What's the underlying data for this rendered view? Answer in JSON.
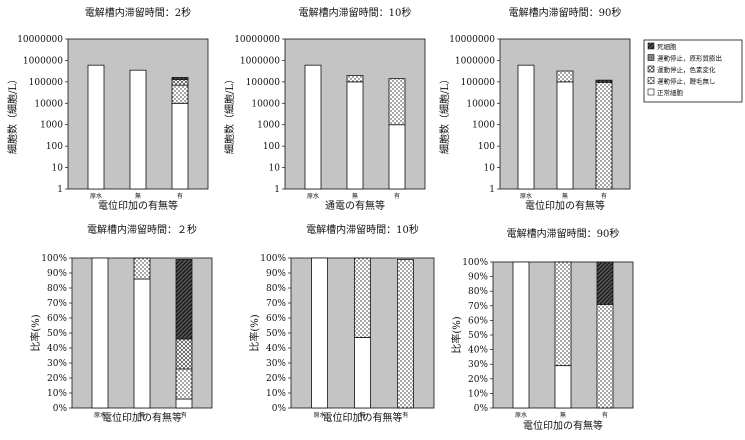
{
  "chart_data": [
    {
      "type": "bar",
      "stacked": true,
      "yscale": "log",
      "title": "電解槽内滞留時間：2秒",
      "ylabel": "細胞数（細胞/L）",
      "xlabel": "電位印加の有無等",
      "categories": [
        "原水",
        "無",
        "有"
      ],
      "ylim": [
        1,
        10000000
      ],
      "yticks": [
        "1",
        "10",
        "100",
        "1000",
        "10000",
        "100000",
        "1000000",
        "10000000"
      ],
      "series": [
        {
          "name": "正常細胞",
          "values": [
            600000,
            350000,
            10000
          ]
        },
        {
          "name": "運動停止，鞭毛無し",
          "values": [
            0,
            0,
            60000
          ]
        },
        {
          "name": "運動停止，色素変化",
          "values": [
            0,
            0,
            60000
          ]
        },
        {
          "name": "運動停止，原形質膨出",
          "values": [
            0,
            0,
            0
          ]
        },
        {
          "name": "死細胞",
          "values": [
            0,
            0,
            30000
          ]
        }
      ]
    },
    {
      "type": "bar",
      "stacked": true,
      "yscale": "log",
      "title": "電解槽内滞留時間：10秒",
      "ylabel": "細胞数（細胞/L）",
      "xlabel": "通電の有無等",
      "categories": [
        "原水",
        "無",
        "有"
      ],
      "ylim": [
        1,
        10000000
      ],
      "yticks": [
        "1",
        "10",
        "100",
        "1000",
        "10000",
        "100000",
        "1000000",
        "10000000"
      ],
      "series": [
        {
          "name": "正常細胞",
          "values": [
            600000,
            100000,
            1000
          ]
        },
        {
          "name": "運動停止，鞭毛無し",
          "values": [
            0,
            100000,
            140000
          ]
        },
        {
          "name": "運動停止，色素変化",
          "values": [
            0,
            0,
            0
          ]
        },
        {
          "name": "運動停止，原形質膨出",
          "values": [
            0,
            0,
            0
          ]
        },
        {
          "name": "死細胞",
          "values": [
            0,
            0,
            0
          ]
        }
      ]
    },
    {
      "type": "bar",
      "stacked": true,
      "yscale": "log",
      "title": "電解槽内滞留時間：90秒",
      "ylabel": "細胞数（細胞/L）",
      "xlabel": "電位印加の有無等",
      "categories": [
        "原水",
        "無",
        "有"
      ],
      "ylim": [
        1,
        10000000
      ],
      "yticks": [
        "1",
        "10",
        "100",
        "1000",
        "10000",
        "100000",
        "1000000",
        "10000000"
      ],
      "series": [
        {
          "name": "正常細胞",
          "values": [
            600000,
            100000,
            0
          ]
        },
        {
          "name": "運動停止，鞭毛無し",
          "values": [
            0,
            220000,
            95000
          ]
        },
        {
          "name": "運動停止，色素変化",
          "values": [
            0,
            0,
            0
          ]
        },
        {
          "name": "運動停止，原形質膨出",
          "values": [
            0,
            0,
            0
          ]
        },
        {
          "name": "死細胞",
          "values": [
            0,
            0,
            25000
          ]
        }
      ]
    },
    {
      "type": "bar",
      "stacked": true,
      "yscale": "linear",
      "title": "電解槽内滞留時間：２秒",
      "ylabel": "比率(%)",
      "xlabel": "電位印加の有無等",
      "categories": [
        "原水",
        "無",
        "有"
      ],
      "ylim": [
        0,
        100
      ],
      "yticks": [
        "0%",
        "10%",
        "20%",
        "30%",
        "40%",
        "50%",
        "60%",
        "70%",
        "80%",
        "90%",
        "100%"
      ],
      "series": [
        {
          "name": "正常細胞",
          "values": [
            100,
            86,
            6
          ]
        },
        {
          "name": "運動停止，鞭毛無し",
          "values": [
            0,
            14,
            20
          ]
        },
        {
          "name": "運動停止，色素変化",
          "values": [
            0,
            0,
            20
          ]
        },
        {
          "name": "運動停止，原形質膨出",
          "values": [
            0,
            0,
            0
          ]
        },
        {
          "name": "死細胞",
          "values": [
            0,
            0,
            53
          ]
        }
      ]
    },
    {
      "type": "bar",
      "stacked": true,
      "yscale": "linear",
      "title": "電解槽内滞留時間：10秒",
      "ylabel": "比率(%)",
      "xlabel": "電位印加の有無等",
      "categories": [
        "原水",
        "無",
        "有"
      ],
      "ylim": [
        0,
        100
      ],
      "yticks": [
        "0%",
        "10%",
        "20%",
        "30%",
        "40%",
        "50%",
        "60%",
        "70%",
        "80%",
        "90%",
        "100%"
      ],
      "series": [
        {
          "name": "正常細胞",
          "values": [
            100,
            47,
            0
          ]
        },
        {
          "name": "運動停止，鞭毛無し",
          "values": [
            0,
            53,
            99
          ]
        },
        {
          "name": "運動停止，色素変化",
          "values": [
            0,
            0,
            0
          ]
        },
        {
          "name": "運動停止，原形質膨出",
          "values": [
            0,
            0,
            0
          ]
        },
        {
          "name": "死細胞",
          "values": [
            0,
            0,
            0
          ]
        }
      ]
    },
    {
      "type": "bar",
      "stacked": true,
      "yscale": "linear",
      "title": "電解槽内滞留時間：90秒",
      "ylabel": "比率(%)",
      "xlabel": "電位印加の有無等",
      "categories": [
        "原水",
        "無",
        "有"
      ],
      "ylim": [
        0,
        100
      ],
      "yticks": [
        "0%",
        "10%",
        "20%",
        "30%",
        "40%",
        "50%",
        "60%",
        "70%",
        "80%",
        "90%",
        "100%"
      ],
      "series": [
        {
          "name": "正常細胞",
          "values": [
            100,
            29,
            0
          ]
        },
        {
          "name": "運動停止，鞭毛無し",
          "values": [
            0,
            71,
            71
          ]
        },
        {
          "name": "運動停止，色素変化",
          "values": [
            0,
            0,
            0
          ]
        },
        {
          "name": "運動停止，原形質膨出",
          "values": [
            0,
            0,
            0
          ]
        },
        {
          "name": "死細胞",
          "values": [
            0,
            0,
            29
          ]
        }
      ]
    }
  ],
  "legend": {
    "placement": "right",
    "items": [
      {
        "label": "死細胞",
        "pattern": "diag"
      },
      {
        "label": "運動停止，原形質膨出",
        "pattern": "gray"
      },
      {
        "label": "運動停止，色素変化",
        "pattern": "cross"
      },
      {
        "label": "運動停止，鞭毛無し",
        "pattern": "dots"
      },
      {
        "label": "正常細胞",
        "pattern": "white"
      }
    ]
  },
  "style": {
    "plot_bg": "#c4c4c4",
    "bar_stroke": "#111111"
  }
}
